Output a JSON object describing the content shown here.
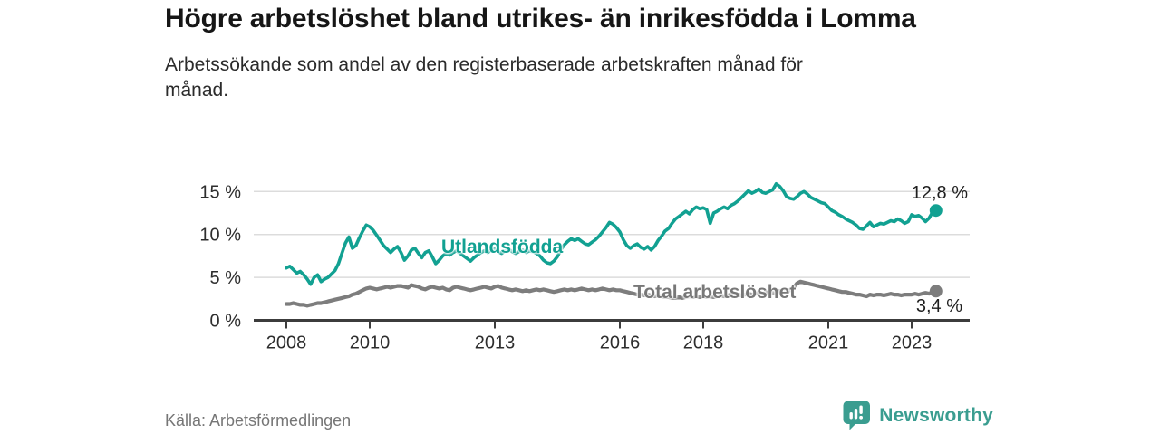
{
  "header": {
    "title": "Högre arbetslöshet bland utrikes- än inrikesfödda i Lomma",
    "subtitle": "Arbetssökande som andel av den registerbaserade arbetskraften månad för månad."
  },
  "footer": {
    "source": "Källa: Arbetsförmedlingen",
    "brand": "Newsworthy"
  },
  "colors": {
    "foreign_born_line": "#12a192",
    "total_line": "#7d7d7d",
    "brand_teal": "#3a9d90",
    "grid": "#dcdcdc",
    "axis": "#3c3c3c"
  },
  "chart_data": {
    "type": "line",
    "title": "Högre arbetslöshet bland utrikes- än inrikesfödda i Lomma",
    "subtitle": "Arbetssökande som andel av den registerbaserade arbetskraften månad för månad.",
    "xlabel": "",
    "ylabel": "",
    "x_start_year": 2008,
    "x_step_months": 1,
    "xlim": [
      2007.2,
      2024.6
    ],
    "ylim": [
      0,
      17
    ],
    "grid": true,
    "legend_position": "inline-labels",
    "x_ticks": [
      {
        "value": 2008,
        "label": "2008"
      },
      {
        "value": 2010,
        "label": "2010"
      },
      {
        "value": 2013,
        "label": "2013"
      },
      {
        "value": 2016,
        "label": "2016"
      },
      {
        "value": 2018,
        "label": "2018"
      },
      {
        "value": 2021,
        "label": "2021"
      },
      {
        "value": 2023,
        "label": "2023"
      }
    ],
    "y_ticks": [
      {
        "value": 0,
        "label": "0 %"
      },
      {
        "value": 5,
        "label": "5 %"
      },
      {
        "value": 10,
        "label": "10 %"
      },
      {
        "value": 15,
        "label": "15 %"
      }
    ],
    "series": [
      {
        "id": "utlandsfodda",
        "name": "Utlandsfödda",
        "color": "#12a192",
        "stroke_width": 3.6,
        "end_label": "12,8 %",
        "end_value": 12.8,
        "values": [
          6.1,
          6.3,
          5.9,
          5.5,
          5.7,
          5.3,
          4.8,
          4.2,
          5.0,
          5.3,
          4.5,
          4.8,
          5.0,
          5.4,
          5.8,
          6.6,
          7.8,
          9.0,
          9.7,
          8.4,
          8.7,
          9.6,
          10.4,
          11.1,
          10.9,
          10.5,
          9.9,
          9.3,
          8.7,
          8.3,
          7.9,
          8.3,
          8.6,
          7.9,
          7.0,
          7.5,
          8.2,
          8.4,
          7.8,
          7.3,
          7.9,
          8.1,
          7.4,
          6.6,
          7.0,
          7.5,
          7.8,
          7.6,
          7.9,
          8.1,
          7.8,
          7.5,
          7.2,
          6.9,
          7.3,
          7.6,
          7.9,
          8.1,
          7.9,
          8.2,
          8.3,
          8.0,
          7.8,
          8.1,
          8.3,
          8.0,
          7.8,
          8.0,
          8.2,
          7.9,
          8.1,
          8.0,
          7.8,
          7.5,
          7.0,
          6.7,
          6.6,
          6.9,
          7.4,
          8.2,
          8.8,
          9.2,
          9.5,
          9.3,
          9.5,
          9.2,
          8.9,
          8.8,
          9.1,
          9.4,
          9.8,
          10.3,
          10.8,
          11.4,
          11.2,
          10.8,
          10.3,
          9.4,
          8.7,
          8.4,
          8.7,
          8.9,
          8.5,
          8.3,
          8.6,
          8.2,
          8.6,
          9.3,
          9.8,
          10.4,
          10.7,
          11.3,
          11.8,
          12.1,
          12.4,
          12.7,
          12.4,
          12.9,
          13.2,
          13.0,
          13.1,
          12.9,
          11.3,
          12.5,
          12.7,
          13.0,
          13.2,
          13.0,
          13.4,
          13.6,
          13.9,
          14.3,
          14.7,
          15.1,
          14.8,
          15.0,
          15.3,
          14.9,
          14.8,
          15.0,
          15.2,
          15.9,
          15.6,
          15.1,
          14.4,
          14.2,
          14.1,
          14.4,
          14.8,
          15.0,
          14.7,
          14.3,
          14.1,
          13.9,
          13.7,
          13.6,
          13.2,
          12.8,
          12.6,
          12.3,
          12.1,
          11.8,
          11.6,
          11.4,
          11.1,
          10.7,
          10.6,
          11.0,
          11.4,
          10.9,
          11.1,
          11.3,
          11.2,
          11.4,
          11.6,
          11.5,
          11.8,
          11.6,
          11.3,
          11.5,
          12.3,
          12.1,
          12.2,
          11.9,
          11.5,
          11.9,
          12.6,
          12.8
        ]
      },
      {
        "id": "total",
        "name": "Total arbetslöshet",
        "color": "#7d7d7d",
        "stroke_width": 4.2,
        "end_label": "3,4 %",
        "end_value": 3.4,
        "values": [
          1.9,
          1.9,
          2.0,
          1.9,
          1.8,
          1.8,
          1.7,
          1.8,
          1.9,
          2.0,
          2.0,
          2.1,
          2.2,
          2.3,
          2.4,
          2.5,
          2.6,
          2.7,
          2.8,
          3.0,
          3.1,
          3.3,
          3.5,
          3.7,
          3.8,
          3.7,
          3.6,
          3.7,
          3.8,
          3.9,
          3.8,
          3.9,
          4.0,
          4.0,
          3.9,
          3.8,
          4.1,
          4.0,
          3.9,
          3.7,
          3.6,
          3.8,
          3.9,
          3.8,
          3.7,
          3.8,
          3.6,
          3.5,
          3.8,
          3.9,
          3.8,
          3.7,
          3.6,
          3.5,
          3.6,
          3.7,
          3.8,
          3.9,
          3.8,
          3.7,
          3.9,
          4.0,
          3.8,
          3.7,
          3.6,
          3.5,
          3.6,
          3.5,
          3.4,
          3.5,
          3.4,
          3.5,
          3.6,
          3.5,
          3.6,
          3.5,
          3.4,
          3.3,
          3.4,
          3.5,
          3.6,
          3.5,
          3.6,
          3.5,
          3.6,
          3.7,
          3.6,
          3.5,
          3.6,
          3.5,
          3.6,
          3.7,
          3.6,
          3.5,
          3.6,
          3.5,
          3.5,
          3.4,
          3.3,
          3.2,
          3.1,
          3.0,
          3.0,
          2.9,
          3.0,
          2.9,
          2.8,
          2.9,
          2.8,
          2.7,
          2.7,
          2.6,
          2.6,
          2.7,
          2.6,
          2.7,
          2.8,
          2.7,
          2.8,
          2.7,
          2.8,
          2.7,
          2.8,
          2.7,
          2.8,
          2.9,
          2.8,
          2.9,
          3.0,
          2.9,
          3.0,
          2.9,
          3.0,
          3.1,
          3.0,
          3.1,
          3.2,
          3.1,
          3.2,
          3.3,
          3.2,
          3.3,
          3.4,
          3.3,
          3.4,
          3.5,
          3.8,
          4.3,
          4.5,
          4.4,
          4.3,
          4.2,
          4.1,
          4.0,
          3.9,
          3.8,
          3.7,
          3.6,
          3.5,
          3.4,
          3.3,
          3.3,
          3.2,
          3.1,
          3.0,
          3.0,
          2.9,
          2.8,
          3.0,
          2.9,
          3.0,
          3.0,
          2.9,
          3.0,
          3.1,
          3.0,
          3.0,
          2.9,
          3.0,
          3.0,
          3.0,
          3.1,
          3.0,
          3.1,
          3.2,
          3.1,
          3.3,
          3.4
        ]
      }
    ]
  }
}
